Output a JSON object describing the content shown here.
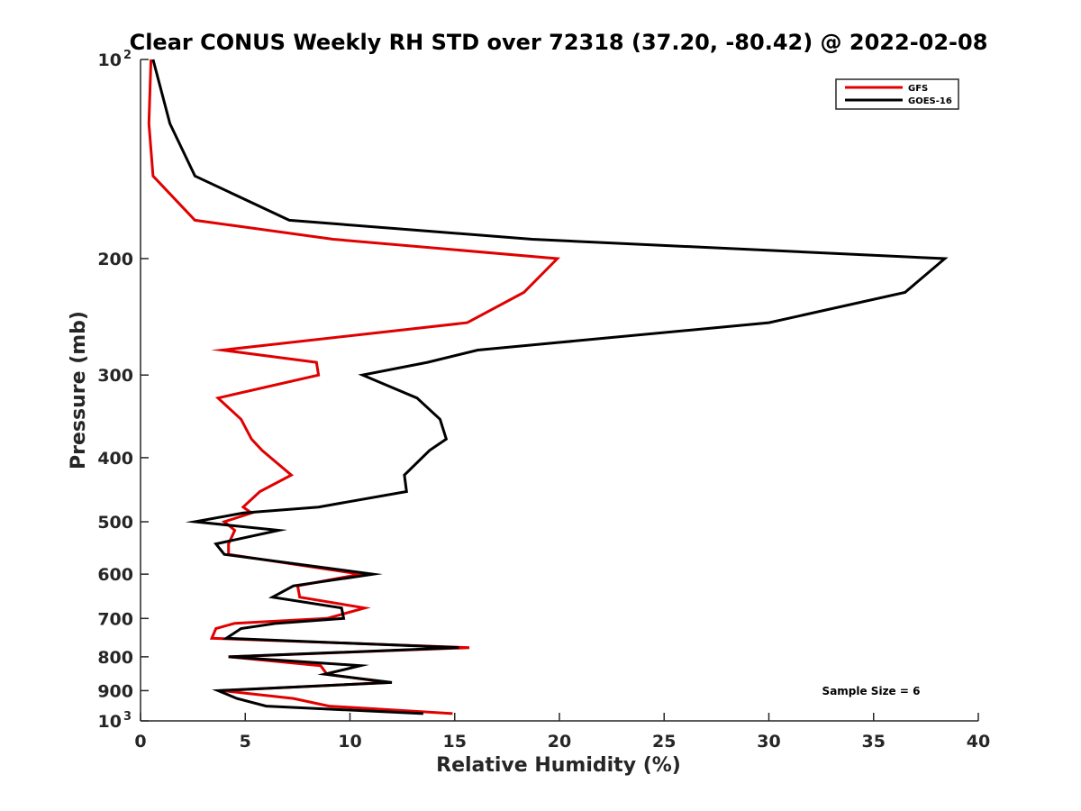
{
  "chart_data": {
    "type": "line",
    "title": "Clear CONUS Weekly RH STD over 72318 (37.20, -80.42) @ 2022-02-08",
    "xlabel": "Relative Humidity (%)",
    "ylabel": "Pressure (mb)",
    "xlim": [
      0,
      40
    ],
    "ylim": [
      100,
      1000
    ],
    "y_scale": "log",
    "y_reversed": true,
    "x_ticks": [
      0,
      5,
      10,
      15,
      20,
      25,
      30,
      35,
      40
    ],
    "x_tick_labels": [
      "0",
      "5",
      "10",
      "15",
      "20",
      "25",
      "30",
      "35",
      "40"
    ],
    "y_ticks": [
      100,
      200,
      300,
      400,
      500,
      600,
      700,
      800,
      900,
      1000
    ],
    "y_tick_labels": [
      {
        "value": 100,
        "base": "10",
        "exp": "2"
      },
      {
        "value": 200,
        "base": "200",
        "exp": ""
      },
      {
        "value": 300,
        "base": "300",
        "exp": ""
      },
      {
        "value": 400,
        "base": "400",
        "exp": ""
      },
      {
        "value": 500,
        "base": "500",
        "exp": ""
      },
      {
        "value": 600,
        "base": "600",
        "exp": ""
      },
      {
        "value": 700,
        "base": "700",
        "exp": ""
      },
      {
        "value": 800,
        "base": "800",
        "exp": ""
      },
      {
        "value": 900,
        "base": "900",
        "exp": ""
      },
      {
        "value": 1000,
        "base": "10",
        "exp": "3"
      }
    ],
    "grid": false,
    "legend_position": "top-right",
    "annotation": "Sample Size = 6",
    "series": [
      {
        "name": "GFS",
        "color": "#e00000",
        "points": [
          [
            0.5,
            100
          ],
          [
            0.4,
            125
          ],
          [
            0.6,
            150
          ],
          [
            2.6,
            175
          ],
          [
            9.2,
            187
          ],
          [
            19.9,
            200
          ],
          [
            18.3,
            225
          ],
          [
            15.6,
            250
          ],
          [
            3.9,
            275
          ],
          [
            8.4,
            287
          ],
          [
            8.5,
            300
          ],
          [
            3.7,
            325
          ],
          [
            4.8,
            350
          ],
          [
            5.3,
            375
          ],
          [
            5.8,
            390
          ],
          [
            7.2,
            425
          ],
          [
            5.7,
            450
          ],
          [
            4.9,
            475
          ],
          [
            5.3,
            485
          ],
          [
            4.0,
            500
          ],
          [
            4.5,
            515
          ],
          [
            4.2,
            540
          ],
          [
            4.2,
            560
          ],
          [
            10.5,
            600
          ],
          [
            7.5,
            625
          ],
          [
            7.6,
            650
          ],
          [
            10.7,
            675
          ],
          [
            8.9,
            700
          ],
          [
            4.5,
            712
          ],
          [
            3.6,
            725
          ],
          [
            3.4,
            750
          ],
          [
            15.7,
            775
          ],
          [
            4.2,
            800
          ],
          [
            8.6,
            825
          ],
          [
            8.9,
            850
          ],
          [
            11.8,
            875
          ],
          [
            3.9,
            900
          ],
          [
            7.3,
            925
          ],
          [
            9.0,
            950
          ],
          [
            14.9,
            975
          ]
        ]
      },
      {
        "name": "GOES-16",
        "color": "#000000",
        "points": [
          [
            0.6,
            100
          ],
          [
            1.4,
            125
          ],
          [
            2.6,
            150
          ],
          [
            7.1,
            175
          ],
          [
            18.7,
            187
          ],
          [
            38.4,
            200
          ],
          [
            36.5,
            225
          ],
          [
            30.0,
            250
          ],
          [
            16.1,
            275
          ],
          [
            13.7,
            287
          ],
          [
            10.6,
            300
          ],
          [
            13.2,
            325
          ],
          [
            14.3,
            350
          ],
          [
            14.6,
            375
          ],
          [
            13.8,
            390
          ],
          [
            12.6,
            425
          ],
          [
            12.7,
            450
          ],
          [
            8.5,
            475
          ],
          [
            4.9,
            485
          ],
          [
            2.6,
            500
          ],
          [
            6.6,
            515
          ],
          [
            3.6,
            540
          ],
          [
            4.0,
            560
          ],
          [
            11.1,
            600
          ],
          [
            7.3,
            625
          ],
          [
            6.3,
            650
          ],
          [
            9.6,
            675
          ],
          [
            9.7,
            700
          ],
          [
            6.5,
            712
          ],
          [
            4.8,
            725
          ],
          [
            4.1,
            750
          ],
          [
            15.2,
            775
          ],
          [
            4.2,
            800
          ],
          [
            10.5,
            825
          ],
          [
            8.8,
            850
          ],
          [
            12.0,
            875
          ],
          [
            3.7,
            900
          ],
          [
            4.6,
            925
          ],
          [
            6.0,
            950
          ],
          [
            13.5,
            975
          ]
        ]
      }
    ]
  }
}
